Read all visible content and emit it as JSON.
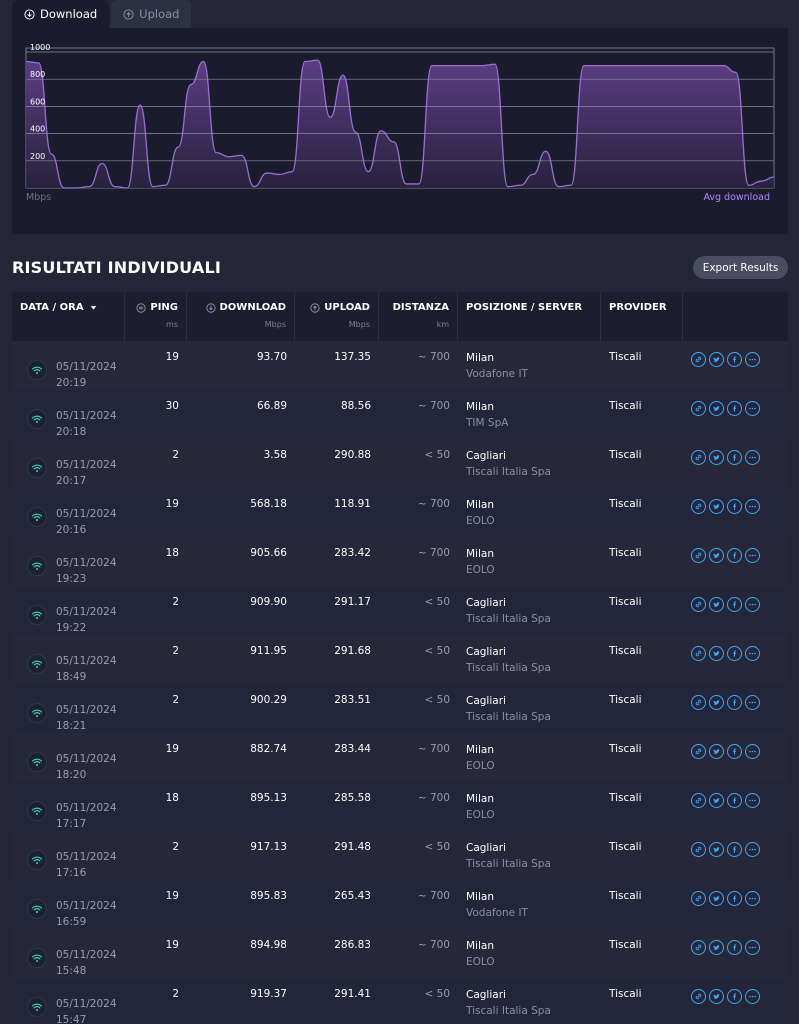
{
  "tabs": [
    {
      "label": "Download",
      "icon": "download-circle-icon",
      "active": true
    },
    {
      "label": "Upload",
      "icon": "upload-circle-icon",
      "active": false
    }
  ],
  "chart_data": {
    "type": "area",
    "yticks": [
      "1000",
      "800",
      "600",
      "400",
      "200"
    ],
    "ylim": [
      0,
      1000
    ],
    "unit_label": "Mbps",
    "legend": "Avg download",
    "series_color": "#9b6fd1",
    "grid": true,
    "x": [
      0,
      1,
      2,
      3,
      4,
      5,
      6,
      7,
      8,
      9,
      10,
      11,
      12,
      13,
      14,
      15,
      16,
      17,
      18,
      19,
      20,
      21,
      22,
      23,
      24,
      25,
      26,
      27,
      28,
      29,
      30,
      31,
      32,
      33,
      34,
      35,
      36,
      37,
      38,
      39,
      40,
      41,
      42,
      43,
      44,
      45,
      46,
      47,
      48,
      49,
      50,
      51,
      52,
      53,
      54,
      55,
      56,
      57,
      58,
      59
    ],
    "values": [
      930,
      920,
      250,
      0,
      0,
      10,
      180,
      10,
      0,
      610,
      10,
      20,
      300,
      760,
      930,
      260,
      230,
      240,
      10,
      110,
      100,
      120,
      930,
      940,
      520,
      830,
      410,
      120,
      420,
      340,
      30,
      30,
      900,
      900,
      900,
      900,
      900,
      910,
      10,
      20,
      100,
      270,
      10,
      20,
      900,
      900,
      900,
      900,
      900,
      900,
      900,
      900,
      900,
      900,
      900,
      900,
      850,
      20,
      50,
      80
    ]
  },
  "section": {
    "title": "RISULTATI INDIVIDUALI",
    "export_label": "Export Results"
  },
  "table": {
    "headers": {
      "date": "DATA / ORA",
      "ping": "PING",
      "ping_unit": "ms",
      "download": "DOWNLOAD",
      "download_unit": "Mbps",
      "upload": "UPLOAD",
      "upload_unit": "Mbps",
      "distance": "DISTANZA",
      "distance_unit": "km",
      "position": "POSIZIONE / SERVER",
      "provider": "PROVIDER"
    },
    "rows": [
      {
        "date": "05/11/2024",
        "time": "20:19",
        "ping": "19",
        "download": "93.70",
        "upload": "137.35",
        "distance": "~ 700",
        "city": "Milan",
        "server": "Vodafone IT",
        "provider": "Tiscali"
      },
      {
        "date": "05/11/2024",
        "time": "20:18",
        "ping": "30",
        "download": "66.89",
        "upload": "88.56",
        "distance": "~ 700",
        "city": "Milan",
        "server": "TIM SpA",
        "provider": "Tiscali"
      },
      {
        "date": "05/11/2024",
        "time": "20:17",
        "ping": "2",
        "download": "3.58",
        "upload": "290.88",
        "distance": "< 50",
        "city": "Cagliari",
        "server": "Tiscali Italia Spa",
        "provider": "Tiscali"
      },
      {
        "date": "05/11/2024",
        "time": "20:16",
        "ping": "19",
        "download": "568.18",
        "upload": "118.91",
        "distance": "~ 700",
        "city": "Milan",
        "server": "EOLO",
        "provider": "Tiscali"
      },
      {
        "date": "05/11/2024",
        "time": "19:23",
        "ping": "18",
        "download": "905.66",
        "upload": "283.42",
        "distance": "~ 700",
        "city": "Milan",
        "server": "EOLO",
        "provider": "Tiscali"
      },
      {
        "date": "05/11/2024",
        "time": "19:22",
        "ping": "2",
        "download": "909.90",
        "upload": "291.17",
        "distance": "< 50",
        "city": "Cagliari",
        "server": "Tiscali Italia Spa",
        "provider": "Tiscali"
      },
      {
        "date": "05/11/2024",
        "time": "18:49",
        "ping": "2",
        "download": "911.95",
        "upload": "291.68",
        "distance": "< 50",
        "city": "Cagliari",
        "server": "Tiscali Italia Spa",
        "provider": "Tiscali"
      },
      {
        "date": "05/11/2024",
        "time": "18:21",
        "ping": "2",
        "download": "900.29",
        "upload": "283.51",
        "distance": "< 50",
        "city": "Cagliari",
        "server": "Tiscali Italia Spa",
        "provider": "Tiscali"
      },
      {
        "date": "05/11/2024",
        "time": "18:20",
        "ping": "19",
        "download": "882.74",
        "upload": "283.44",
        "distance": "~ 700",
        "city": "Milan",
        "server": "EOLO",
        "provider": "Tiscali"
      },
      {
        "date": "05/11/2024",
        "time": "17:17",
        "ping": "18",
        "download": "895.13",
        "upload": "285.58",
        "distance": "~ 700",
        "city": "Milan",
        "server": "EOLO",
        "provider": "Tiscali"
      },
      {
        "date": "05/11/2024",
        "time": "17:16",
        "ping": "2",
        "download": "917.13",
        "upload": "291.48",
        "distance": "< 50",
        "city": "Cagliari",
        "server": "Tiscali Italia Spa",
        "provider": "Tiscali"
      },
      {
        "date": "05/11/2024",
        "time": "16:59",
        "ping": "19",
        "download": "895.83",
        "upload": "265.43",
        "distance": "~ 700",
        "city": "Milan",
        "server": "Vodafone IT",
        "provider": "Tiscali"
      },
      {
        "date": "05/11/2024",
        "time": "15:48",
        "ping": "19",
        "download": "894.98",
        "upload": "286.83",
        "distance": "~ 700",
        "city": "Milan",
        "server": "EOLO",
        "provider": "Tiscali"
      },
      {
        "date": "05/11/2024",
        "time": "15:47",
        "ping": "2",
        "download": "919.37",
        "upload": "291.41",
        "distance": "< 50",
        "city": "Cagliari",
        "server": "Tiscali Italia Spa",
        "provider": "Tiscali"
      }
    ]
  },
  "row_actions": [
    "link-icon",
    "twitter-icon",
    "facebook-icon",
    "more-icon"
  ]
}
